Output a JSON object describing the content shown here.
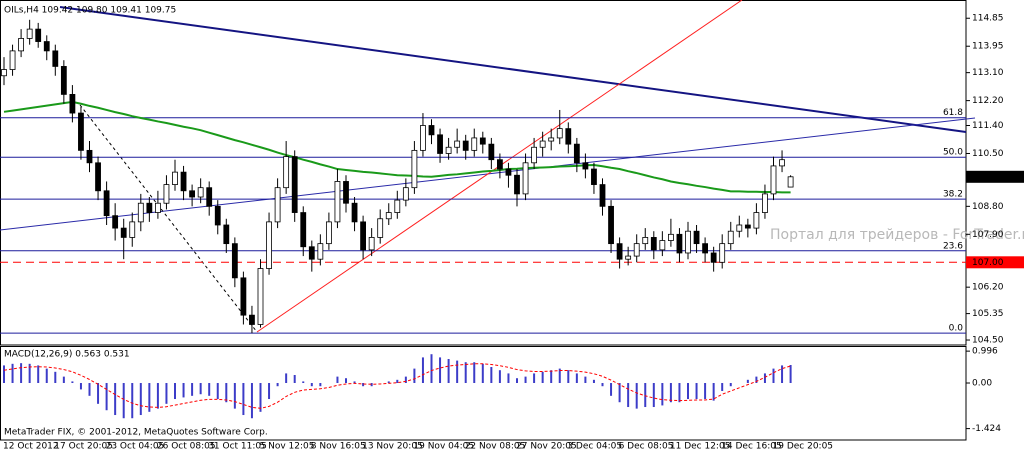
{
  "chart_data": [
    {
      "type": "candlestick",
      "title": "OILs,H4  109.42 109.80 109.41 109.75",
      "categories": [
        "12 Oct 2012",
        null,
        null,
        null,
        null,
        null,
        "17 Oct 20:05",
        null,
        null,
        null,
        null,
        null,
        "23 Oct 04:05",
        null,
        null,
        null,
        null,
        null,
        "26 Oct 08:05",
        null,
        null,
        null,
        null,
        null,
        "31 Oct 11:05",
        null,
        null,
        null,
        null,
        null,
        "5 Nov 12:05",
        null,
        null,
        null,
        null,
        null,
        "8 Nov 16:05",
        null,
        null,
        null,
        null,
        null,
        "13 Nov 20:05",
        null,
        null,
        null,
        null,
        null,
        "19 Nov 04:05",
        null,
        null,
        null,
        null,
        null,
        "22 Nov 08:05",
        null,
        null,
        null,
        null,
        null,
        "27 Nov 20:05",
        null,
        null,
        null,
        null,
        null,
        "3 Dec 04:05",
        null,
        null,
        null,
        null,
        null,
        "6 Dec 08:05",
        null,
        null,
        null,
        null,
        null,
        "11 Dec 12:05",
        null,
        null,
        null,
        null,
        null,
        "14 Dec 16:05",
        null,
        null,
        null,
        null,
        null,
        "19 Dec 20:05",
        null,
        null
      ],
      "candles": [
        [
          113.0,
          113.6,
          112.7,
          113.2
        ],
        [
          113.2,
          114.0,
          113.0,
          113.8
        ],
        [
          113.8,
          114.5,
          113.6,
          114.2
        ],
        [
          114.2,
          114.8,
          114.0,
          114.5
        ],
        [
          114.5,
          114.7,
          113.9,
          114.1
        ],
        [
          114.1,
          114.3,
          113.5,
          113.8
        ],
        [
          113.8,
          114.0,
          113.0,
          113.3
        ],
        [
          113.3,
          113.5,
          112.1,
          112.4
        ],
        [
          112.4,
          112.7,
          111.5,
          111.8
        ],
        [
          111.8,
          112.0,
          110.3,
          110.6
        ],
        [
          110.6,
          110.9,
          109.9,
          110.2
        ],
        [
          110.2,
          110.4,
          109.0,
          109.3
        ],
        [
          109.3,
          109.6,
          108.2,
          108.5
        ],
        [
          108.5,
          108.9,
          107.7,
          108.1
        ],
        [
          108.1,
          108.4,
          107.1,
          107.8
        ],
        [
          107.8,
          108.6,
          107.5,
          108.3
        ],
        [
          108.3,
          109.2,
          108.0,
          108.9
        ],
        [
          108.9,
          109.1,
          108.3,
          108.6
        ],
        [
          108.6,
          109.3,
          108.4,
          108.9
        ],
        [
          108.9,
          109.8,
          108.7,
          109.5
        ],
        [
          109.5,
          110.3,
          109.3,
          109.9
        ],
        [
          109.9,
          110.1,
          109.0,
          109.3
        ],
        [
          109.3,
          109.5,
          108.8,
          109.1
        ],
        [
          109.1,
          109.7,
          108.9,
          109.4
        ],
        [
          109.4,
          109.6,
          108.5,
          108.8
        ],
        [
          108.8,
          109.0,
          107.9,
          108.2
        ],
        [
          108.2,
          108.4,
          107.3,
          107.6
        ],
        [
          107.6,
          107.8,
          106.2,
          106.5
        ],
        [
          106.5,
          106.7,
          105.0,
          105.3
        ],
        [
          105.3,
          105.6,
          104.72,
          105.0
        ],
        [
          105.0,
          107.1,
          104.9,
          106.8
        ],
        [
          106.8,
          108.6,
          106.6,
          108.3
        ],
        [
          108.3,
          109.7,
          108.1,
          109.4
        ],
        [
          109.4,
          110.9,
          109.2,
          110.4
        ],
        [
          110.4,
          110.6,
          108.3,
          108.6
        ],
        [
          108.6,
          108.8,
          107.2,
          107.5
        ],
        [
          107.5,
          107.7,
          106.7,
          107.1
        ],
        [
          107.1,
          107.9,
          106.9,
          107.6
        ],
        [
          107.6,
          108.6,
          107.4,
          108.3
        ],
        [
          108.3,
          110.0,
          108.1,
          109.6
        ],
        [
          109.6,
          109.8,
          108.6,
          108.9
        ],
        [
          108.9,
          109.1,
          108.0,
          108.3
        ],
        [
          108.3,
          108.5,
          107.1,
          107.4
        ],
        [
          107.4,
          108.1,
          107.2,
          107.8
        ],
        [
          107.8,
          108.7,
          107.6,
          108.4
        ],
        [
          108.4,
          108.9,
          108.2,
          108.6
        ],
        [
          108.6,
          109.3,
          108.4,
          109.0
        ],
        [
          109.0,
          109.7,
          108.8,
          109.4
        ],
        [
          109.4,
          110.9,
          109.2,
          110.6
        ],
        [
          110.6,
          111.8,
          110.4,
          111.4
        ],
        [
          111.4,
          111.6,
          110.8,
          111.1
        ],
        [
          111.1,
          111.3,
          110.2,
          110.5
        ],
        [
          110.5,
          111.0,
          110.3,
          110.7
        ],
        [
          110.7,
          111.3,
          110.5,
          110.9
        ],
        [
          110.9,
          111.1,
          110.3,
          110.6
        ],
        [
          110.6,
          111.3,
          110.4,
          111.0
        ],
        [
          111.0,
          111.2,
          110.5,
          110.8
        ],
        [
          110.8,
          111.0,
          110.0,
          110.3
        ],
        [
          110.3,
          110.5,
          109.7,
          110.0
        ],
        [
          110.0,
          110.2,
          109.4,
          109.8
        ],
        [
          109.8,
          110.0,
          108.8,
          109.2
        ],
        [
          109.2,
          110.5,
          109.0,
          110.2
        ],
        [
          110.2,
          111.0,
          110.0,
          110.7
        ],
        [
          110.7,
          111.2,
          110.4,
          110.9
        ],
        [
          110.9,
          111.3,
          110.6,
          111.0
        ],
        [
          111.0,
          111.9,
          110.8,
          111.3
        ],
        [
          111.3,
          111.5,
          110.5,
          110.8
        ],
        [
          110.8,
          111.0,
          109.9,
          110.2
        ],
        [
          110.2,
          110.5,
          109.7,
          110.0
        ],
        [
          110.0,
          110.2,
          109.2,
          109.5
        ],
        [
          109.5,
          109.7,
          108.5,
          108.8
        ],
        [
          108.8,
          109.0,
          107.3,
          107.6
        ],
        [
          107.6,
          107.8,
          106.8,
          107.1
        ],
        [
          107.1,
          107.5,
          106.9,
          107.2
        ],
        [
          107.2,
          107.9,
          107.0,
          107.6
        ],
        [
          107.6,
          108.1,
          107.4,
          107.8
        ],
        [
          107.8,
          108.0,
          107.1,
          107.4
        ],
        [
          107.4,
          108.0,
          107.2,
          107.7
        ],
        [
          107.7,
          108.4,
          107.5,
          107.9
        ],
        [
          107.9,
          108.1,
          107.0,
          107.3
        ],
        [
          107.3,
          108.3,
          107.1,
          108.0
        ],
        [
          108.0,
          108.2,
          107.3,
          107.6
        ],
        [
          107.6,
          107.8,
          107.0,
          107.3
        ],
        [
          107.3,
          107.5,
          106.7,
          107.0
        ],
        [
          107.0,
          107.9,
          106.8,
          107.6
        ],
        [
          107.6,
          108.3,
          107.4,
          108.0
        ],
        [
          108.0,
          108.5,
          107.8,
          108.2
        ],
        [
          108.2,
          108.4,
          107.8,
          108.1
        ],
        [
          108.1,
          108.9,
          107.9,
          108.6
        ],
        [
          108.6,
          109.5,
          108.4,
          109.2
        ],
        [
          109.2,
          110.4,
          109.0,
          110.1
        ],
        [
          110.1,
          110.6,
          109.9,
          110.3
        ],
        [
          109.42,
          109.8,
          109.41,
          109.75
        ]
      ],
      "ma": {
        "color": "#1a9a1a",
        "values": [
          111.84,
          111.88,
          111.92,
          111.96,
          112.0,
          112.04,
          112.08,
          112.12,
          112.16,
          112.1,
          112.03,
          111.97,
          111.9,
          111.83,
          111.77,
          111.7,
          111.64,
          111.59,
          111.53,
          111.48,
          111.42,
          111.36,
          111.31,
          111.25,
          111.17,
          111.09,
          111.01,
          110.93,
          110.86,
          110.78,
          110.7,
          110.62,
          110.53,
          110.45,
          110.38,
          110.3,
          110.23,
          110.15,
          110.08,
          110.0,
          109.97,
          109.94,
          109.91,
          109.89,
          109.86,
          109.83,
          109.8,
          109.79,
          109.78,
          109.76,
          109.75,
          109.78,
          109.81,
          109.83,
          109.86,
          109.89,
          109.92,
          109.94,
          109.97,
          110.0,
          110.01,
          110.03,
          110.04,
          110.05,
          110.06,
          110.08,
          110.09,
          110.1,
          110.12,
          110.13,
          110.09,
          110.04,
          110.0,
          109.93,
          109.87,
          109.8,
          109.73,
          109.67,
          109.6,
          109.55,
          109.51,
          109.46,
          109.42,
          109.37,
          109.33,
          109.28,
          109.28,
          109.27,
          109.27,
          109.26,
          109.26,
          109.25,
          109.25
        ]
      },
      "hlines": [
        {
          "name": "61.8",
          "value": 111.65,
          "color": "#1c1c9c"
        },
        {
          "name": "50.0",
          "value": 110.38,
          "color": "#1c1c9c"
        },
        {
          "name": "38.2",
          "value": 109.03,
          "color": "#1c1c9c"
        },
        {
          "name": "23.6",
          "value": 107.37,
          "color": "#1c1c9c"
        },
        {
          "name": "0.0",
          "value": 104.72,
          "color": "#1c1c9c"
        },
        {
          "value": 107.0,
          "label": "107.00",
          "color": "#ff0000",
          "dashed": true
        }
      ],
      "last_price": {
        "value": 109.75,
        "label": "109.75"
      },
      "watermark": "Портал для трейдеров - ForTrader.ru",
      "ylim": [
        104.34,
        115.34
      ],
      "yticks": [
        114.85,
        113.95,
        {
          "value": 113.1,
          "label": "113.10"
        },
        {
          "value": 112.2,
          "label": "112.20"
        },
        {
          "value": 111.4,
          "label": "111.40"
        },
        {
          "value": 110.5,
          "label": "110.50"
        },
        {
          "value": 108.8,
          "label": "108.80"
        },
        {
          "value": 107.9,
          "label": "107.90"
        },
        {
          "value": 106.2,
          "label": "106.20"
        },
        105.35,
        {
          "value": 104.5,
          "label": "104.50"
        }
      ]
    },
    {
      "type": "macd",
      "title": "MACD(12,26,9) 0.563 0.531",
      "series": [
        {
          "type": "bar",
          "color": "#3c3cc8",
          "values": [
            0.55,
            0.6,
            0.62,
            0.6,
            0.55,
            0.45,
            0.35,
            0.2,
            0.05,
            -0.2,
            -0.4,
            -0.65,
            -0.85,
            -1.0,
            -1.1,
            -1.1,
            -1.0,
            -0.9,
            -0.8,
            -0.65,
            -0.5,
            -0.45,
            -0.4,
            -0.35,
            -0.4,
            -0.5,
            -0.6,
            -0.8,
            -1.0,
            -1.1,
            -0.9,
            -0.5,
            -0.1,
            0.3,
            0.25,
            0.05,
            -0.1,
            -0.1,
            0.0,
            0.2,
            0.15,
            0.05,
            -0.1,
            -0.1,
            0.0,
            0.05,
            0.1,
            0.2,
            0.45,
            0.8,
            0.9,
            0.8,
            0.75,
            0.7,
            0.65,
            0.65,
            0.6,
            0.5,
            0.4,
            0.3,
            0.15,
            0.2,
            0.3,
            0.35,
            0.4,
            0.45,
            0.4,
            0.3,
            0.2,
            0.1,
            -0.1,
            -0.4,
            -0.6,
            -0.75,
            -0.8,
            -0.75,
            -0.75,
            -0.7,
            -0.6,
            -0.6,
            -0.5,
            -0.5,
            -0.5,
            -0.55,
            -0.25,
            -0.1,
            0.0,
            0.1,
            0.2,
            0.3,
            0.45,
            0.55,
            0.563
          ]
        },
        {
          "type": "line",
          "color": "#ff0000",
          "dashed": true,
          "values": [
            0.4,
            0.44,
            0.48,
            0.5,
            0.51,
            0.5,
            0.47,
            0.42,
            0.35,
            0.24,
            0.11,
            -0.04,
            -0.2,
            -0.36,
            -0.51,
            -0.63,
            -0.71,
            -0.75,
            -0.76,
            -0.74,
            -0.69,
            -0.64,
            -0.59,
            -0.54,
            -0.51,
            -0.51,
            -0.53,
            -0.58,
            -0.67,
            -0.76,
            -0.79,
            -0.73,
            -0.6,
            -0.42,
            -0.29,
            -0.22,
            -0.2,
            -0.18,
            -0.14,
            -0.07,
            -0.03,
            -0.01,
            -0.03,
            -0.04,
            -0.03,
            -0.01,
            0.01,
            0.05,
            0.13,
            0.26,
            0.39,
            0.47,
            0.53,
            0.56,
            0.58,
            0.6,
            0.6,
            0.58,
            0.54,
            0.49,
            0.42,
            0.38,
            0.36,
            0.36,
            0.37,
            0.39,
            0.39,
            0.37,
            0.34,
            0.29,
            0.21,
            0.09,
            -0.05,
            -0.19,
            -0.31,
            -0.4,
            -0.47,
            -0.52,
            -0.54,
            -0.55,
            -0.54,
            -0.53,
            -0.53,
            -0.5,
            -0.35,
            -0.25,
            -0.15,
            -0.05,
            0.05,
            0.18,
            0.32,
            0.45,
            0.531
          ]
        }
      ],
      "copyright": "MetaTrader FIX, © 2001-2012, MetaQuotes Software Corp.",
      "ylim": [
        -1.78,
        1.125
      ],
      "yticks": [
        0.996,
        {
          "value": 0,
          "label": "0.00"
        },
        -1.424
      ]
    }
  ]
}
